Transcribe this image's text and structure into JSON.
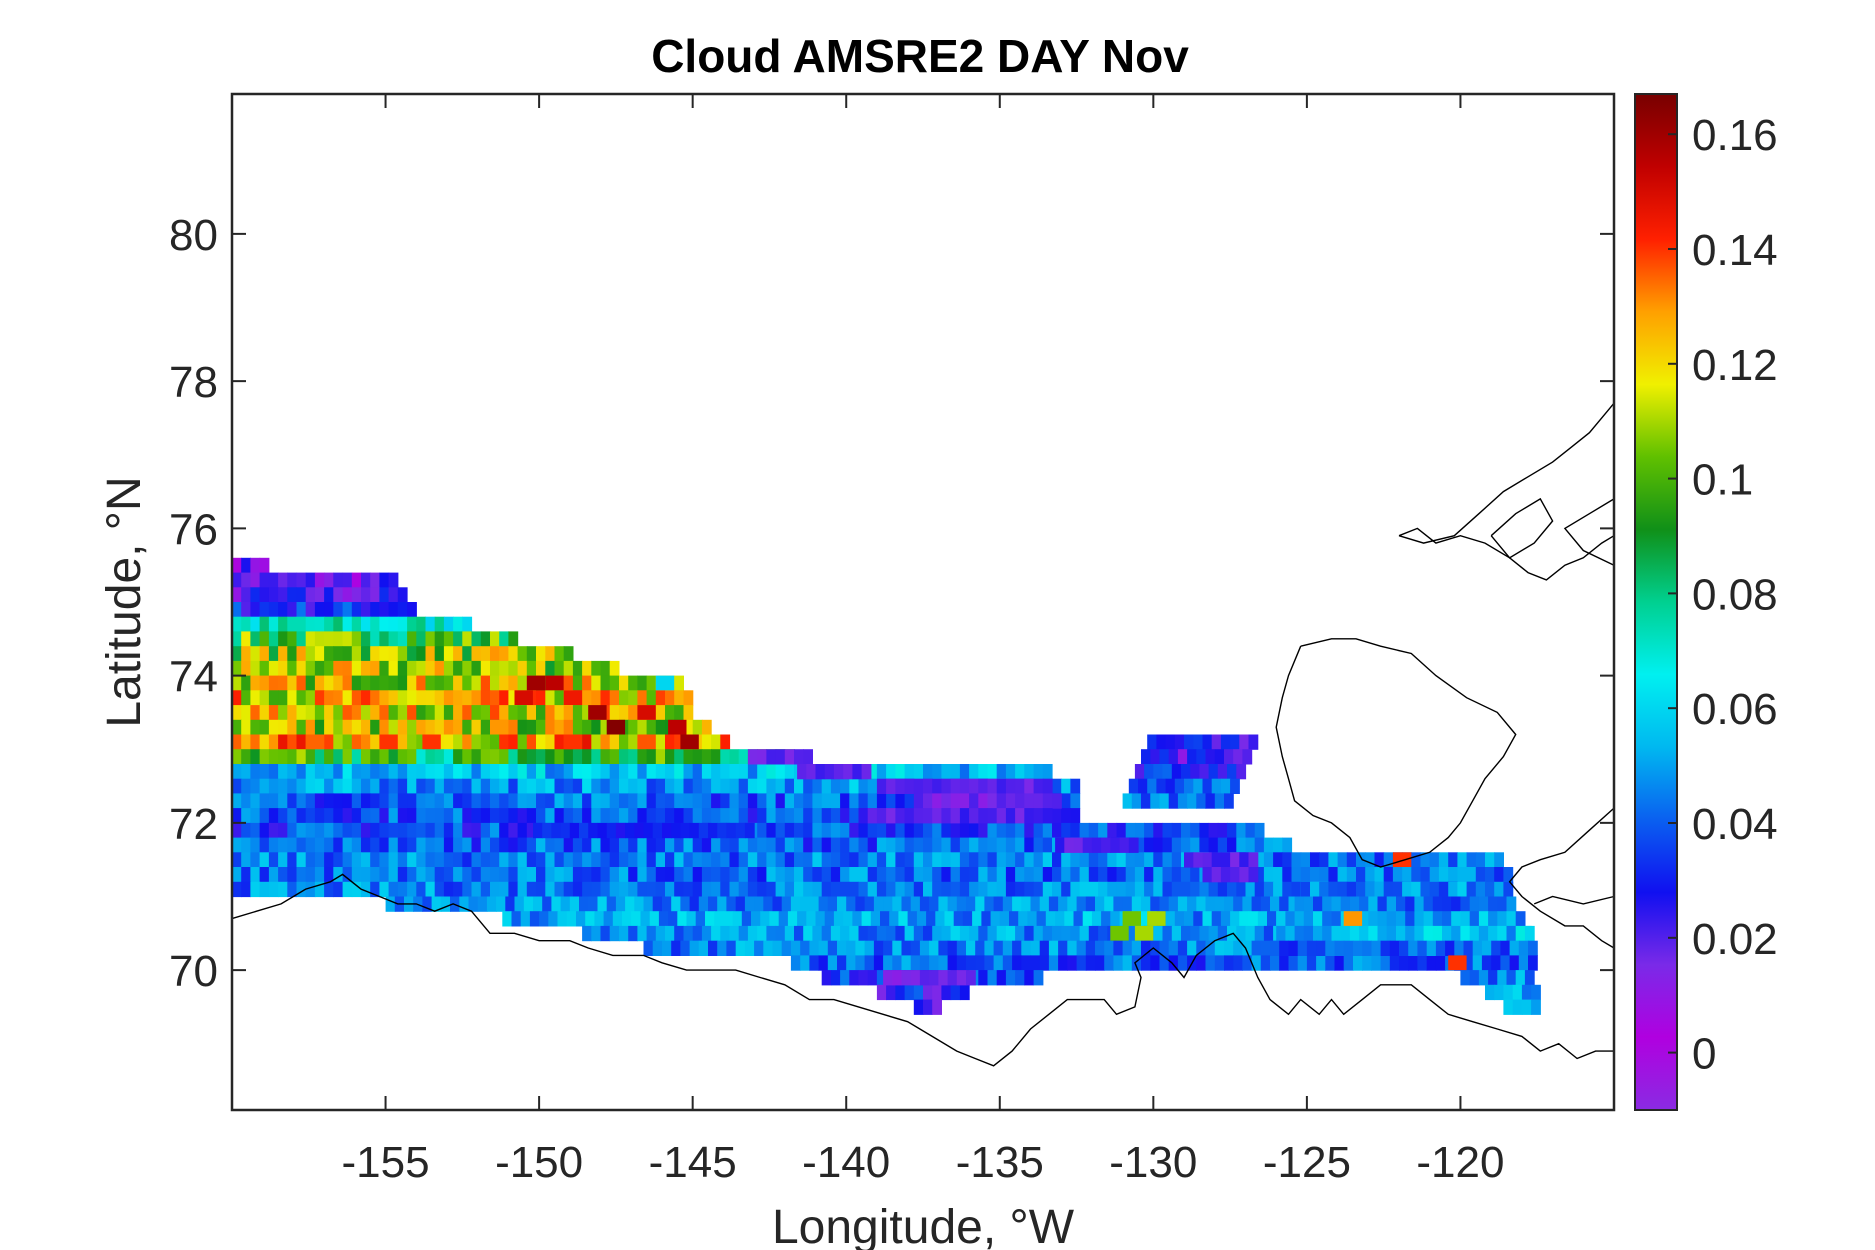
{
  "chart_data": {
    "type": "heatmap",
    "title": "Cloud AMSRE2 DAY Nov",
    "xlabel": "Longitude, °W",
    "ylabel": "Latitude, °N",
    "xlim": [
      -160,
      -115
    ],
    "ylim": [
      68.1,
      81.9
    ],
    "xticks": [
      -155,
      -150,
      -145,
      -140,
      -135,
      -130,
      -125,
      -120
    ],
    "yticks": [
      70,
      72,
      74,
      76,
      78,
      80
    ],
    "colorbar": {
      "ticks": [
        0,
        0.02,
        0.04,
        0.06,
        0.08,
        0.1,
        0.12,
        0.14,
        0.16
      ],
      "tick_labels": [
        "0",
        "0.02",
        "0.04",
        "0.06",
        "0.08",
        "0.1",
        "0.12",
        "0.14",
        "0.16"
      ],
      "range": [
        -0.01,
        0.167
      ],
      "colormap": [
        "#8a2be2",
        "#b000e0",
        "#7a2ae8",
        "#1010f0",
        "#0a60f0",
        "#00b8f0",
        "#00f0f0",
        "#00d090",
        "#109018",
        "#60c000",
        "#f0f000",
        "#ffa000",
        "#ff2000",
        "#c00000",
        "#780000"
      ]
    },
    "cell_size": {
      "lon": 0.3,
      "lat": 0.2
    },
    "grid_rows": [
      {
        "lat": 75.4,
        "lon_start": -160.0,
        "lon_end": -158.8,
        "value": 0.015
      },
      {
        "lat": 75.2,
        "lon_start": -160.0,
        "lon_end": -154.6,
        "value": 0.016
      },
      {
        "lat": 75.0,
        "lon_start": -160.0,
        "lon_end": -154.4,
        "value": 0.02
      },
      {
        "lat": 74.8,
        "lon_start": -160.0,
        "lon_end": -154.2,
        "value": 0.032
      },
      {
        "lat": 74.6,
        "lon_start": -160.0,
        "lon_end": -152.2,
        "value": 0.07
      },
      {
        "lat": 74.4,
        "lon_start": -160.0,
        "lon_end": -150.8,
        "value": 0.095
      },
      {
        "lat": 74.2,
        "lon_start": -160.0,
        "lon_end": -149.0,
        "value": 0.108
      },
      {
        "lat": 74.0,
        "lon_start": -160.0,
        "lon_end": -147.6,
        "value": 0.11
      },
      {
        "lat": 73.8,
        "lon_start": -160.0,
        "lon_end": -145.4,
        "value": 0.115
      },
      {
        "lat": 73.6,
        "lon_start": -160.0,
        "lon_end": -145.2,
        "value": 0.12
      },
      {
        "lat": 73.4,
        "lon_start": -160.0,
        "lon_end": -145.0,
        "value": 0.118
      },
      {
        "lat": 73.2,
        "lon_start": -160.0,
        "lon_end": -144.4,
        "value": 0.112
      },
      {
        "lat": 73.0,
        "lon_start": -160.0,
        "lon_end": -143.8,
        "value": 0.125
      },
      {
        "lat": 72.8,
        "lon_start": -160.0,
        "lon_end": -141.8,
        "value": 0.09
      },
      {
        "lat": 72.6,
        "lon_start": -160.0,
        "lon_end": -133.4,
        "value": 0.055
      },
      {
        "lat": 72.4,
        "lon_start": -160.0,
        "lon_end": -132.6,
        "value": 0.048
      },
      {
        "lat": 72.2,
        "lon_start": -160.0,
        "lon_end": -132.6,
        "value": 0.04
      },
      {
        "lat": 72.0,
        "lon_start": -160.0,
        "lon_end": -132.6,
        "value": 0.038
      },
      {
        "lat": 71.8,
        "lon_start": -160.0,
        "lon_end": -126.4,
        "value": 0.036
      },
      {
        "lat": 71.6,
        "lon_start": -160.0,
        "lon_end": -125.6,
        "value": 0.04
      },
      {
        "lat": 71.4,
        "lon_start": -160.0,
        "lon_end": -118.6,
        "value": 0.044
      },
      {
        "lat": 71.2,
        "lon_start": -160.0,
        "lon_end": -118.4,
        "value": 0.042
      },
      {
        "lat": 71.0,
        "lon_start": -160.0,
        "lon_end": -118.4,
        "value": 0.045
      },
      {
        "lat": 70.8,
        "lon_start": -155.0,
        "lon_end": -118.4,
        "value": 0.046
      },
      {
        "lat": 70.6,
        "lon_start": -151.2,
        "lon_end": -118.2,
        "value": 0.05
      },
      {
        "lat": 70.4,
        "lon_start": -148.6,
        "lon_end": -117.8,
        "value": 0.048
      },
      {
        "lat": 70.2,
        "lon_start": -146.6,
        "lon_end": -117.8,
        "value": 0.045
      },
      {
        "lat": 70.0,
        "lon_start": -141.8,
        "lon_end": -117.8,
        "value": 0.04
      },
      {
        "lat": 69.8,
        "lon_start": -140.8,
        "lon_end": -133.6,
        "value": 0.036
      },
      {
        "lat": 69.6,
        "lon_start": -139.0,
        "lon_end": -136.2,
        "value": 0.028
      },
      {
        "lat": 69.4,
        "lon_start": -137.8,
        "lon_end": -137.0,
        "value": 0.024
      }
    ],
    "grid_rows_right": [
      {
        "lat": 73.0,
        "lon_start": -130.2,
        "lon_end": -126.6,
        "value": 0.025
      },
      {
        "lat": 72.8,
        "lon_start": -130.4,
        "lon_end": -126.8,
        "value": 0.022
      },
      {
        "lat": 72.6,
        "lon_start": -130.6,
        "lon_end": -127.0,
        "value": 0.03
      },
      {
        "lat": 72.4,
        "lon_start": -130.8,
        "lon_end": -127.2,
        "value": 0.038
      },
      {
        "lat": 72.2,
        "lon_start": -131.0,
        "lon_end": -127.6,
        "value": 0.042
      },
      {
        "lat": 71.0,
        "lon_start": -125.2,
        "lon_end": -118.4,
        "value": 0.046
      },
      {
        "lat": 70.8,
        "lon_start": -125.4,
        "lon_end": -118.4,
        "value": 0.044
      },
      {
        "lat": 70.6,
        "lon_start": -126.0,
        "lon_end": -118.0,
        "value": 0.05
      },
      {
        "lat": 70.4,
        "lon_start": -126.0,
        "lon_end": -117.8,
        "value": 0.055
      },
      {
        "lat": 70.2,
        "lon_start": -126.2,
        "lon_end": -117.6,
        "value": 0.042
      },
      {
        "lat": 70.0,
        "lon_start": -120.2,
        "lon_end": -117.6,
        "value": 0.04
      },
      {
        "lat": 69.8,
        "lon_start": -120.0,
        "lon_end": -117.6,
        "value": 0.045
      },
      {
        "lat": 69.6,
        "lon_start": -119.2,
        "lon_end": -117.4,
        "value": 0.05
      },
      {
        "lat": 69.4,
        "lon_start": -118.6,
        "lon_end": -117.4,
        "value": 0.055
      }
    ],
    "hotspots": [
      {
        "lon": -150.4,
        "lat": 73.8,
        "value": 0.16
      },
      {
        "lon": -149.8,
        "lat": 73.8,
        "value": 0.155
      },
      {
        "lon": -150.8,
        "lat": 73.6,
        "value": 0.15
      },
      {
        "lon": -149.2,
        "lat": 73.6,
        "value": 0.145
      },
      {
        "lon": -148.4,
        "lat": 73.4,
        "value": 0.16
      },
      {
        "lon": -147.8,
        "lat": 73.2,
        "value": 0.165
      },
      {
        "lon": -146.8,
        "lat": 73.4,
        "value": 0.15
      },
      {
        "lon": -145.4,
        "lat": 73.0,
        "value": 0.16
      },
      {
        "lon": -145.8,
        "lat": 73.2,
        "value": 0.155
      },
      {
        "lon": -149.2,
        "lat": 73.0,
        "value": 0.14
      },
      {
        "lon": -155.2,
        "lat": 73.0,
        "value": 0.14
      },
      {
        "lon": -153.8,
        "lat": 73.0,
        "value": 0.14
      },
      {
        "lon": -157.6,
        "lat": 73.0,
        "value": 0.135
      },
      {
        "lon": -151.6,
        "lat": 73.2,
        "value": 0.13
      },
      {
        "lon": -122.2,
        "lat": 71.4,
        "value": 0.14
      },
      {
        "lon": -123.8,
        "lat": 70.6,
        "value": 0.13
      },
      {
        "lon": -120.4,
        "lat": 70.0,
        "value": 0.14
      },
      {
        "lon": -131.0,
        "lat": 70.6,
        "value": 0.105
      },
      {
        "lon": -130.2,
        "lat": 70.6,
        "value": 0.11
      },
      {
        "lon": -131.4,
        "lat": 70.4,
        "value": 0.105
      },
      {
        "lon": -130.6,
        "lat": 70.4,
        "value": 0.11
      },
      {
        "lon": -146.2,
        "lat": 73.8,
        "value": 0.06
      }
    ],
    "purple_bands": [
      {
        "lat": 72.8,
        "lon_start": -143.2,
        "lon_end": -141.2,
        "value": 0.018
      },
      {
        "lat": 72.6,
        "lon_start": -141.6,
        "lon_end": -139.4,
        "value": 0.02
      },
      {
        "lat": 72.4,
        "lon_start": -139.0,
        "lon_end": -133.4,
        "value": 0.018
      },
      {
        "lat": 72.2,
        "lon_start": -137.8,
        "lon_end": -133.2,
        "value": 0.016
      },
      {
        "lat": 72.0,
        "lon_start": -139.6,
        "lon_end": -133.4,
        "value": 0.02
      },
      {
        "lat": 71.8,
        "lon_start": -150.2,
        "lon_end": -143.2,
        "value": 0.03
      },
      {
        "lat": 71.6,
        "lon_start": -133.2,
        "lon_end": -130.6,
        "value": 0.02
      },
      {
        "lat": 71.4,
        "lon_start": -129.0,
        "lon_end": -126.8,
        "value": 0.02
      },
      {
        "lat": 71.2,
        "lon_start": -128.4,
        "lon_end": -126.8,
        "value": 0.018
      },
      {
        "lat": 69.8,
        "lon_start": -138.8,
        "lon_end": -136.0,
        "value": 0.015
      }
    ],
    "coastlines": [
      {
        "name": "alaska-coast",
        "points": [
          [
            -160,
            70.7
          ],
          [
            -159.2,
            70.8
          ],
          [
            -158.4,
            70.9
          ],
          [
            -157.6,
            71.1
          ],
          [
            -156.8,
            71.2
          ],
          [
            -156.4,
            71.3
          ],
          [
            -155.8,
            71.1
          ],
          [
            -155.2,
            71.0
          ],
          [
            -154.6,
            70.9
          ],
          [
            -154.0,
            70.9
          ],
          [
            -153.4,
            70.8
          ],
          [
            -152.8,
            70.9
          ],
          [
            -152.2,
            70.8
          ],
          [
            -151.6,
            70.5
          ],
          [
            -150.8,
            70.5
          ],
          [
            -150.0,
            70.4
          ],
          [
            -149.0,
            70.4
          ],
          [
            -148.4,
            70.3
          ],
          [
            -147.6,
            70.2
          ],
          [
            -146.6,
            70.2
          ],
          [
            -146.0,
            70.1
          ],
          [
            -145.2,
            70.0
          ],
          [
            -144.4,
            70.0
          ],
          [
            -143.6,
            70.0
          ],
          [
            -142.8,
            69.9
          ],
          [
            -142.0,
            69.8
          ],
          [
            -141.2,
            69.6
          ],
          [
            -140.4,
            69.6
          ],
          [
            -139.6,
            69.5
          ],
          [
            -138.8,
            69.4
          ],
          [
            -138.0,
            69.3
          ],
          [
            -137.2,
            69.1
          ],
          [
            -136.4,
            68.9
          ],
          [
            -135.8,
            68.8
          ],
          [
            -135.2,
            68.7
          ],
          [
            -134.6,
            68.9
          ],
          [
            -134.0,
            69.2
          ],
          [
            -133.4,
            69.4
          ],
          [
            -132.8,
            69.6
          ],
          [
            -132.2,
            69.6
          ],
          [
            -131.6,
            69.6
          ],
          [
            -131.2,
            69.4
          ],
          [
            -130.6,
            69.5
          ],
          [
            -130.4,
            69.9
          ],
          [
            -130.6,
            70.1
          ],
          [
            -130.0,
            70.3
          ],
          [
            -129.4,
            70.1
          ],
          [
            -129.0,
            69.9
          ],
          [
            -128.6,
            70.2
          ],
          [
            -128.0,
            70.4
          ],
          [
            -127.4,
            70.5
          ],
          [
            -127.0,
            70.3
          ],
          [
            -126.6,
            69.9
          ],
          [
            -126.2,
            69.6
          ],
          [
            -125.6,
            69.4
          ],
          [
            -125.2,
            69.6
          ],
          [
            -124.6,
            69.4
          ],
          [
            -124.2,
            69.6
          ],
          [
            -123.8,
            69.4
          ],
          [
            -123.2,
            69.6
          ],
          [
            -122.6,
            69.8
          ],
          [
            -122.2,
            69.8
          ],
          [
            -121.6,
            69.8
          ],
          [
            -121.0,
            69.6
          ],
          [
            -120.4,
            69.4
          ],
          [
            -119.6,
            69.3
          ],
          [
            -118.8,
            69.2
          ],
          [
            -118.0,
            69.1
          ],
          [
            -117.4,
            68.9
          ],
          [
            -116.8,
            69.0
          ],
          [
            -116.2,
            68.8
          ],
          [
            -115.6,
            68.9
          ],
          [
            -115.0,
            68.9
          ]
        ]
      },
      {
        "name": "banks-island",
        "points": [
          [
            -125.2,
            74.4
          ],
          [
            -124.2,
            74.5
          ],
          [
            -123.4,
            74.5
          ],
          [
            -122.6,
            74.4
          ],
          [
            -121.6,
            74.3
          ],
          [
            -120.8,
            74.0
          ],
          [
            -119.8,
            73.7
          ],
          [
            -118.8,
            73.5
          ],
          [
            -118.2,
            73.2
          ],
          [
            -118.6,
            72.9
          ],
          [
            -119.2,
            72.6
          ],
          [
            -119.6,
            72.3
          ],
          [
            -120.0,
            72.0
          ],
          [
            -120.4,
            71.8
          ],
          [
            -121.0,
            71.6
          ],
          [
            -121.8,
            71.5
          ],
          [
            -122.6,
            71.4
          ],
          [
            -123.2,
            71.5
          ],
          [
            -123.6,
            71.8
          ],
          [
            -124.2,
            72.0
          ],
          [
            -124.8,
            72.1
          ],
          [
            -125.4,
            72.3
          ],
          [
            -125.6,
            72.6
          ],
          [
            -125.8,
            72.9
          ],
          [
            -126.0,
            73.3
          ],
          [
            -125.8,
            73.7
          ],
          [
            -125.6,
            74.0
          ],
          [
            -125.2,
            74.4
          ]
        ]
      },
      {
        "name": "victoria-island",
        "points": [
          [
            -115,
            72.2
          ],
          [
            -115.8,
            71.9
          ],
          [
            -116.6,
            71.6
          ],
          [
            -117.4,
            71.5
          ],
          [
            -118.0,
            71.4
          ],
          [
            -118.4,
            71.2
          ],
          [
            -118.0,
            71.0
          ],
          [
            -117.4,
            70.8
          ],
          [
            -116.6,
            70.6
          ],
          [
            -116.0,
            70.6
          ],
          [
            -115.4,
            70.4
          ],
          [
            -115,
            70.3
          ]
        ]
      },
      {
        "name": "prince-patrick-island",
        "points": [
          [
            -122.0,
            75.9
          ],
          [
            -121.2,
            75.8
          ],
          [
            -120.2,
            75.9
          ],
          [
            -119.4,
            76.2
          ],
          [
            -118.6,
            76.5
          ],
          [
            -117.8,
            76.7
          ],
          [
            -117.0,
            76.9
          ],
          [
            -116.4,
            77.1
          ],
          [
            -115.8,
            77.3
          ],
          [
            -115.2,
            77.6
          ],
          [
            -115,
            77.7
          ]
        ]
      },
      {
        "name": "prince-patrick-south",
        "points": [
          [
            -122.0,
            75.9
          ],
          [
            -121.4,
            76.0
          ],
          [
            -120.8,
            75.8
          ],
          [
            -120.0,
            75.9
          ],
          [
            -119.2,
            75.8
          ],
          [
            -118.4,
            75.6
          ],
          [
            -117.8,
            75.4
          ],
          [
            -117.2,
            75.3
          ],
          [
            -116.6,
            75.5
          ],
          [
            -116.0,
            75.6
          ],
          [
            -115.4,
            75.8
          ],
          [
            -115,
            75.9
          ]
        ]
      },
      {
        "name": "eglinton-island",
        "points": [
          [
            -119.0,
            75.9
          ],
          [
            -118.2,
            76.2
          ],
          [
            -117.4,
            76.4
          ],
          [
            -117.0,
            76.1
          ],
          [
            -117.6,
            75.8
          ],
          [
            -118.4,
            75.6
          ],
          [
            -119.0,
            75.9
          ]
        ]
      },
      {
        "name": "melville-channel",
        "points": [
          [
            -115,
            76.4
          ],
          [
            -115.8,
            76.2
          ],
          [
            -116.6,
            76.0
          ],
          [
            -116.0,
            75.7
          ],
          [
            -115,
            75.5
          ]
        ]
      },
      {
        "name": "amundsen-gulf-south",
        "points": [
          [
            -115,
            71.0
          ],
          [
            -116.0,
            70.9
          ],
          [
            -117.0,
            71.0
          ],
          [
            -117.6,
            70.9
          ]
        ]
      }
    ]
  }
}
